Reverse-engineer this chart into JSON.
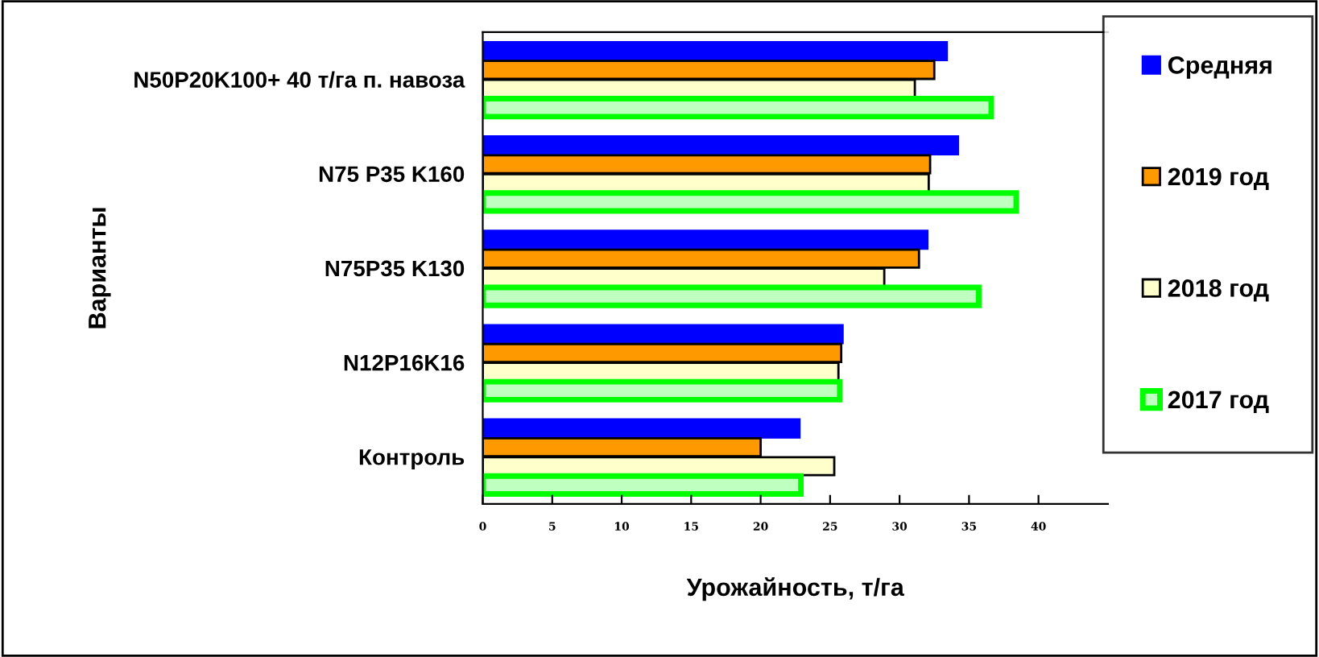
{
  "chart_data": {
    "type": "bar",
    "orientation": "horizontal",
    "xlabel": "Урожайность, т/га",
    "ylabel": "Варианты",
    "categories": [
      "N50P20K100+ 40 т/га п. навоза",
      "N75 P35 K160",
      "N75P35 K130",
      "N12P16K16",
      "Контроль"
    ],
    "series": [
      {
        "name": "Средняя",
        "color": "#0000ff",
        "values": [
          33.4,
          34.2,
          32.0,
          25.9,
          22.8
        ]
      },
      {
        "name": "2019 год",
        "color": "#ff9900",
        "values": [
          32.5,
          32.2,
          31.4,
          25.8,
          20.0
        ]
      },
      {
        "name": "2018 год",
        "color": "#ffffcc",
        "values": [
          31.1,
          32.1,
          28.9,
          25.6,
          25.3
        ]
      },
      {
        "name": "2017 год",
        "color": "#00ff00",
        "values": [
          36.6,
          38.4,
          35.7,
          25.7,
          22.9
        ]
      }
    ],
    "xlim": [
      0,
      45
    ],
    "xticks": [
      0,
      5,
      10,
      15,
      20,
      25,
      30,
      35,
      40
    ],
    "grid": false,
    "legend": "right"
  }
}
